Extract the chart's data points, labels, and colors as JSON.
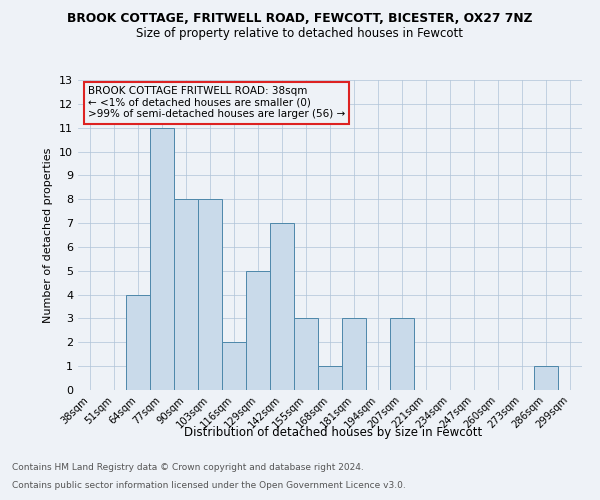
{
  "title": "BROOK COTTAGE, FRITWELL ROAD, FEWCOTT, BICESTER, OX27 7NZ",
  "subtitle": "Size of property relative to detached houses in Fewcott",
  "xlabel": "Distribution of detached houses by size in Fewcott",
  "ylabel": "Number of detached properties",
  "categories": [
    "38sqm",
    "51sqm",
    "64sqm",
    "77sqm",
    "90sqm",
    "103sqm",
    "116sqm",
    "129sqm",
    "142sqm",
    "155sqm",
    "168sqm",
    "181sqm",
    "194sqm",
    "207sqm",
    "221sqm",
    "234sqm",
    "247sqm",
    "260sqm",
    "273sqm",
    "286sqm",
    "299sqm"
  ],
  "values": [
    0,
    0,
    4,
    11,
    8,
    8,
    2,
    5,
    7,
    3,
    1,
    3,
    0,
    3,
    0,
    0,
    0,
    0,
    0,
    1,
    0
  ],
  "bar_color": "#c9daea",
  "bar_edge_color": "#4d87aa",
  "highlight_color": "#dd2222",
  "annotation_title": "BROOK COTTAGE FRITWELL ROAD: 38sqm",
  "annotation_line1": "← <1% of detached houses are smaller (0)",
  "annotation_line2": ">99% of semi-detached houses are larger (56) →",
  "ylim": [
    0,
    13
  ],
  "yticks": [
    0,
    1,
    2,
    3,
    4,
    5,
    6,
    7,
    8,
    9,
    10,
    11,
    12,
    13
  ],
  "footer_line1": "Contains HM Land Registry data © Crown copyright and database right 2024.",
  "footer_line2": "Contains public sector information licensed under the Open Government Licence v3.0.",
  "bg_color": "#eef2f7",
  "grid_color": "#b0c4d8"
}
